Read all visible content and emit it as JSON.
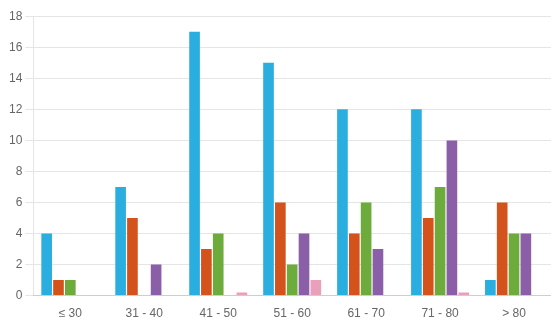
{
  "chart_data": {
    "type": "bar",
    "categories": [
      "≤ 30",
      "31 - 40",
      "41 - 50",
      "51 - 60",
      "61 - 70",
      "71 - 80",
      "> 80"
    ],
    "series": [
      {
        "color": "#2aaee0",
        "values": [
          4,
          7,
          17,
          15,
          12,
          12,
          1
        ]
      },
      {
        "color": "#d4531c",
        "values": [
          1,
          5,
          3,
          6,
          4,
          5,
          6
        ]
      },
      {
        "color": "#6dab3c",
        "values": [
          1,
          0,
          4,
          2,
          6,
          7,
          4
        ]
      },
      {
        "color": "#8b5fa8",
        "values": [
          0,
          2,
          0,
          4,
          3,
          10,
          4
        ]
      },
      {
        "color": "#e8a0bb",
        "values": [
          0,
          0,
          0.2,
          1,
          0,
          0.2,
          0
        ]
      }
    ],
    "ylim": [
      0,
      18
    ],
    "yticks": [
      0,
      2,
      4,
      6,
      8,
      10,
      12,
      14,
      16,
      18
    ],
    "grid": true
  }
}
